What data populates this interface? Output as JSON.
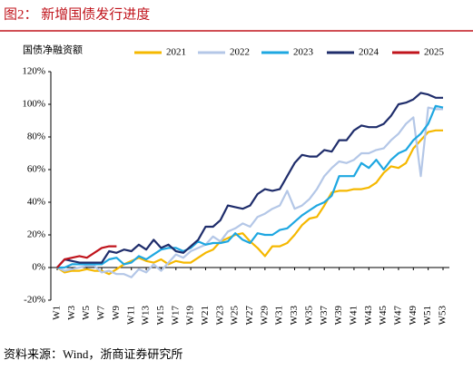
{
  "chart_data": {
    "type": "line",
    "title": "图2：  新增国债发行进度",
    "y_label": "国债净融资额",
    "source": "资料来源：Wind，浙商证券研究所",
    "categories": [
      "W1",
      null,
      "W3",
      null,
      "W5",
      null,
      "W7",
      null,
      "W9",
      null,
      "W11",
      null,
      "W13",
      null,
      "W15",
      null,
      "W17",
      null,
      "W19",
      null,
      "W21",
      null,
      "W23",
      null,
      "W25",
      null,
      "W27",
      null,
      "W29",
      null,
      "W31",
      null,
      "W33",
      null,
      "W35",
      null,
      "W37",
      null,
      "W39",
      null,
      "W41",
      null,
      "W43",
      null,
      "W45",
      null,
      "W47",
      null,
      "W49",
      null,
      "W51",
      null,
      "W53"
    ],
    "ylim": [
      -20,
      120
    ],
    "yticks": [
      {
        "value": -20,
        "label": "-20%"
      },
      {
        "value": 0,
        "label": "0%"
      },
      {
        "value": 20,
        "label": "20%"
      },
      {
        "value": 40,
        "label": "40%"
      },
      {
        "value": 60,
        "label": "60%"
      },
      {
        "value": 80,
        "label": "80%"
      },
      {
        "value": 100,
        "label": "100%"
      },
      {
        "value": 120,
        "label": "120%"
      }
    ],
    "grid": false,
    "legend": "top-right",
    "series": [
      {
        "name": "2021",
        "color": "#f5b800",
        "values": [
          0,
          -3,
          -2,
          -2,
          -1,
          -2,
          -2,
          -4,
          -1,
          2,
          4,
          6,
          4,
          3,
          5,
          2,
          4,
          3,
          3,
          6,
          9,
          11,
          16,
          18,
          20,
          21,
          16,
          12,
          7,
          13,
          13,
          15,
          20,
          26,
          30,
          31,
          38,
          46,
          47,
          47,
          48,
          48,
          49,
          52,
          58,
          62,
          61,
          64,
          73,
          78,
          83,
          84,
          84
        ]
      },
      {
        "name": "2022",
        "color": "#b4c7e7",
        "values": [
          0,
          -2,
          -1,
          0,
          1,
          1,
          -3,
          -2,
          -4,
          -4,
          -6,
          -1,
          -3,
          2,
          -2,
          3,
          8,
          6,
          10,
          12,
          14,
          19,
          16,
          22,
          24,
          27,
          25,
          31,
          33,
          36,
          38,
          47,
          36,
          38,
          42,
          48,
          56,
          61,
          65,
          64,
          66,
          70,
          70,
          72,
          73,
          78,
          82,
          88,
          92,
          56,
          98,
          97,
          97
        ]
      },
      {
        "name": "2023",
        "color": "#1ea7e1",
        "values": [
          0,
          0,
          2,
          2,
          2,
          2,
          2,
          5,
          6,
          2,
          3,
          7,
          5,
          8,
          11,
          12,
          12,
          10,
          12,
          16,
          14,
          15,
          15,
          16,
          21,
          17,
          15,
          21,
          20,
          20,
          23,
          24,
          28,
          32,
          35,
          38,
          40,
          44,
          56,
          56,
          56,
          64,
          61,
          66,
          60,
          66,
          70,
          72,
          78,
          82,
          88,
          99,
          98
        ]
      },
      {
        "name": "2024",
        "color": "#1f2d6b",
        "values": [
          0,
          5,
          4,
          3,
          3,
          3,
          3,
          10,
          9,
          11,
          10,
          14,
          11,
          17,
          12,
          14,
          10,
          9,
          13,
          17,
          25,
          25,
          29,
          38,
          37,
          36,
          38,
          45,
          48,
          47,
          48,
          56,
          64,
          69,
          68,
          68,
          72,
          71,
          78,
          78,
          84,
          87,
          86,
          86,
          88,
          93,
          100,
          101,
          103,
          107,
          106,
          104,
          104
        ]
      },
      {
        "name": "2025",
        "color": "#c0141c",
        "values": [
          0,
          5,
          6,
          7,
          6,
          9,
          12,
          13,
          13,
          null,
          null,
          null,
          null,
          null,
          null,
          null,
          null,
          null,
          null,
          null,
          null,
          null,
          null,
          null,
          null,
          null,
          null,
          null,
          null,
          null,
          null,
          null,
          null,
          null,
          null,
          null,
          null,
          null,
          null,
          null,
          null,
          null,
          null,
          null,
          null,
          null,
          null,
          null,
          null,
          null,
          null,
          null,
          null
        ]
      }
    ]
  }
}
